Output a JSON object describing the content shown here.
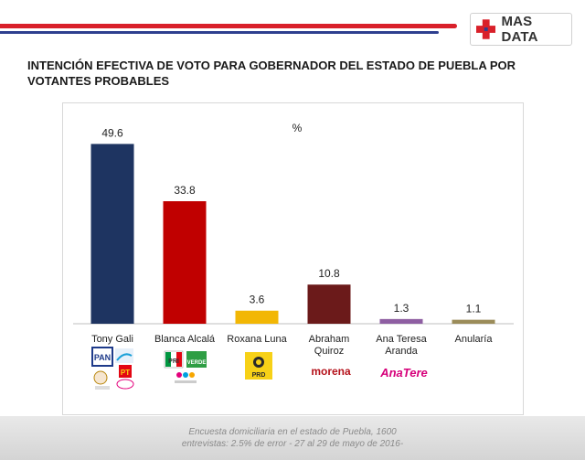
{
  "header": {
    "brand": "MAS DATA",
    "colors": {
      "red": "#d9202a",
      "blue": "#2e3f8f"
    }
  },
  "title": "INTENCIÓN EFECTIVA DE VOTO PARA GOBERNADOR DEL ESTADO DE PUEBLA POR VOTANTES PROBABLES",
  "chart_data": {
    "type": "bar",
    "unit_label": "%",
    "categories": [
      [
        "Tony Gali"
      ],
      [
        "Blanca Alcalá"
      ],
      [
        "Roxana Luna"
      ],
      [
        "Abraham",
        "Quiroz"
      ],
      [
        "Ana Teresa",
        "Aranda"
      ],
      [
        "Anularía"
      ]
    ],
    "values": [
      49.6,
      33.8,
      3.6,
      10.8,
      1.3,
      1.1
    ],
    "data_labels": [
      "49.6",
      "33.8",
      "3.6",
      "10.8",
      "1.3",
      "1.1"
    ],
    "colors": [
      "#1e3461",
      "#c00000",
      "#f2b705",
      "#6b1a1a",
      "#8e5ea2",
      "#9b8c5a"
    ],
    "ylim": [
      0,
      55
    ],
    "grid": false,
    "legend": "none"
  },
  "party_logos": {
    "morena": "morena",
    "anatere": "AnaTere",
    "prd": "PRD",
    "pan": "PAN",
    "pri": "PRI",
    "verde": "VERDE",
    "pt": "PT"
  },
  "footer": {
    "line1": "Encuesta domiciliaria en el estado de Puebla, 1600",
    "line2": "entrevistas: 2.5% de error - 27 al 29 de mayo de 2016-"
  }
}
